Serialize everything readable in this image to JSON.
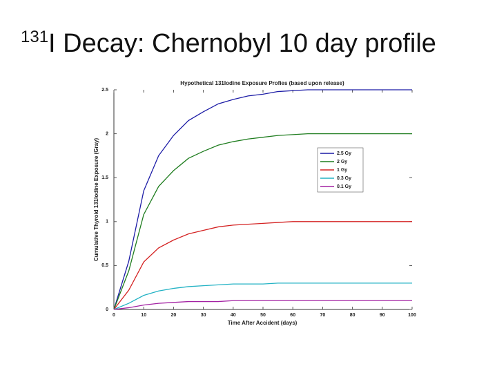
{
  "slide": {
    "title_superscript": "131",
    "title": "I Decay: Chernobyl 10 day profile"
  },
  "chart_data": {
    "type": "line",
    "title": "Hypothetical 131Iodine Exposure Profies (based upon release)",
    "x_label": "Time After Accident (days)",
    "y_label": "Cumulative Thyroid 131Iodine Exposure (Gray)",
    "x": [
      0,
      5,
      10,
      15,
      20,
      25,
      30,
      35,
      40,
      45,
      50,
      55,
      60,
      65,
      70,
      75,
      80,
      85,
      90,
      95,
      100
    ],
    "series": [
      {
        "name": "2.5 Gy",
        "color": "#1c1ca6",
        "values": [
          0,
          0.55,
          1.35,
          1.75,
          1.98,
          2.15,
          2.25,
          2.34,
          2.39,
          2.43,
          2.45,
          2.48,
          2.49,
          2.5,
          2.5,
          2.5,
          2.5,
          2.5,
          2.5,
          2.5,
          2.5
        ]
      },
      {
        "name": "2 Gy",
        "color": "#1f7d1f",
        "values": [
          0,
          0.44,
          1.08,
          1.4,
          1.58,
          1.72,
          1.8,
          1.87,
          1.91,
          1.94,
          1.96,
          1.98,
          1.99,
          2,
          2,
          2,
          2,
          2,
          2,
          2,
          2
        ]
      },
      {
        "name": "1 Gy",
        "color": "#d42222",
        "values": [
          0,
          0.22,
          0.54,
          0.7,
          0.79,
          0.86,
          0.9,
          0.94,
          0.96,
          0.97,
          0.98,
          0.99,
          1,
          1,
          1,
          1,
          1,
          1,
          1,
          1,
          1
        ]
      },
      {
        "name": "0.3 Gy",
        "color": "#22b2c4",
        "values": [
          0,
          0.07,
          0.16,
          0.21,
          0.24,
          0.26,
          0.27,
          0.28,
          0.29,
          0.29,
          0.29,
          0.3,
          0.3,
          0.3,
          0.3,
          0.3,
          0.3,
          0.3,
          0.3,
          0.3,
          0.3
        ]
      },
      {
        "name": "0.1 Gy",
        "color": "#a322a3",
        "values": [
          0,
          0.02,
          0.05,
          0.07,
          0.08,
          0.09,
          0.09,
          0.09,
          0.1,
          0.1,
          0.1,
          0.1,
          0.1,
          0.1,
          0.1,
          0.1,
          0.1,
          0.1,
          0.1,
          0.1,
          0.1
        ]
      }
    ],
    "xlim": [
      0,
      100
    ],
    "xticks": [
      0,
      10,
      20,
      30,
      40,
      50,
      60,
      70,
      80,
      90,
      100
    ],
    "ylim": [
      0,
      2.5
    ],
    "yticks": [
      0,
      0.5,
      1,
      1.5,
      2,
      2.5
    ],
    "grid": false,
    "legend": "right"
  }
}
